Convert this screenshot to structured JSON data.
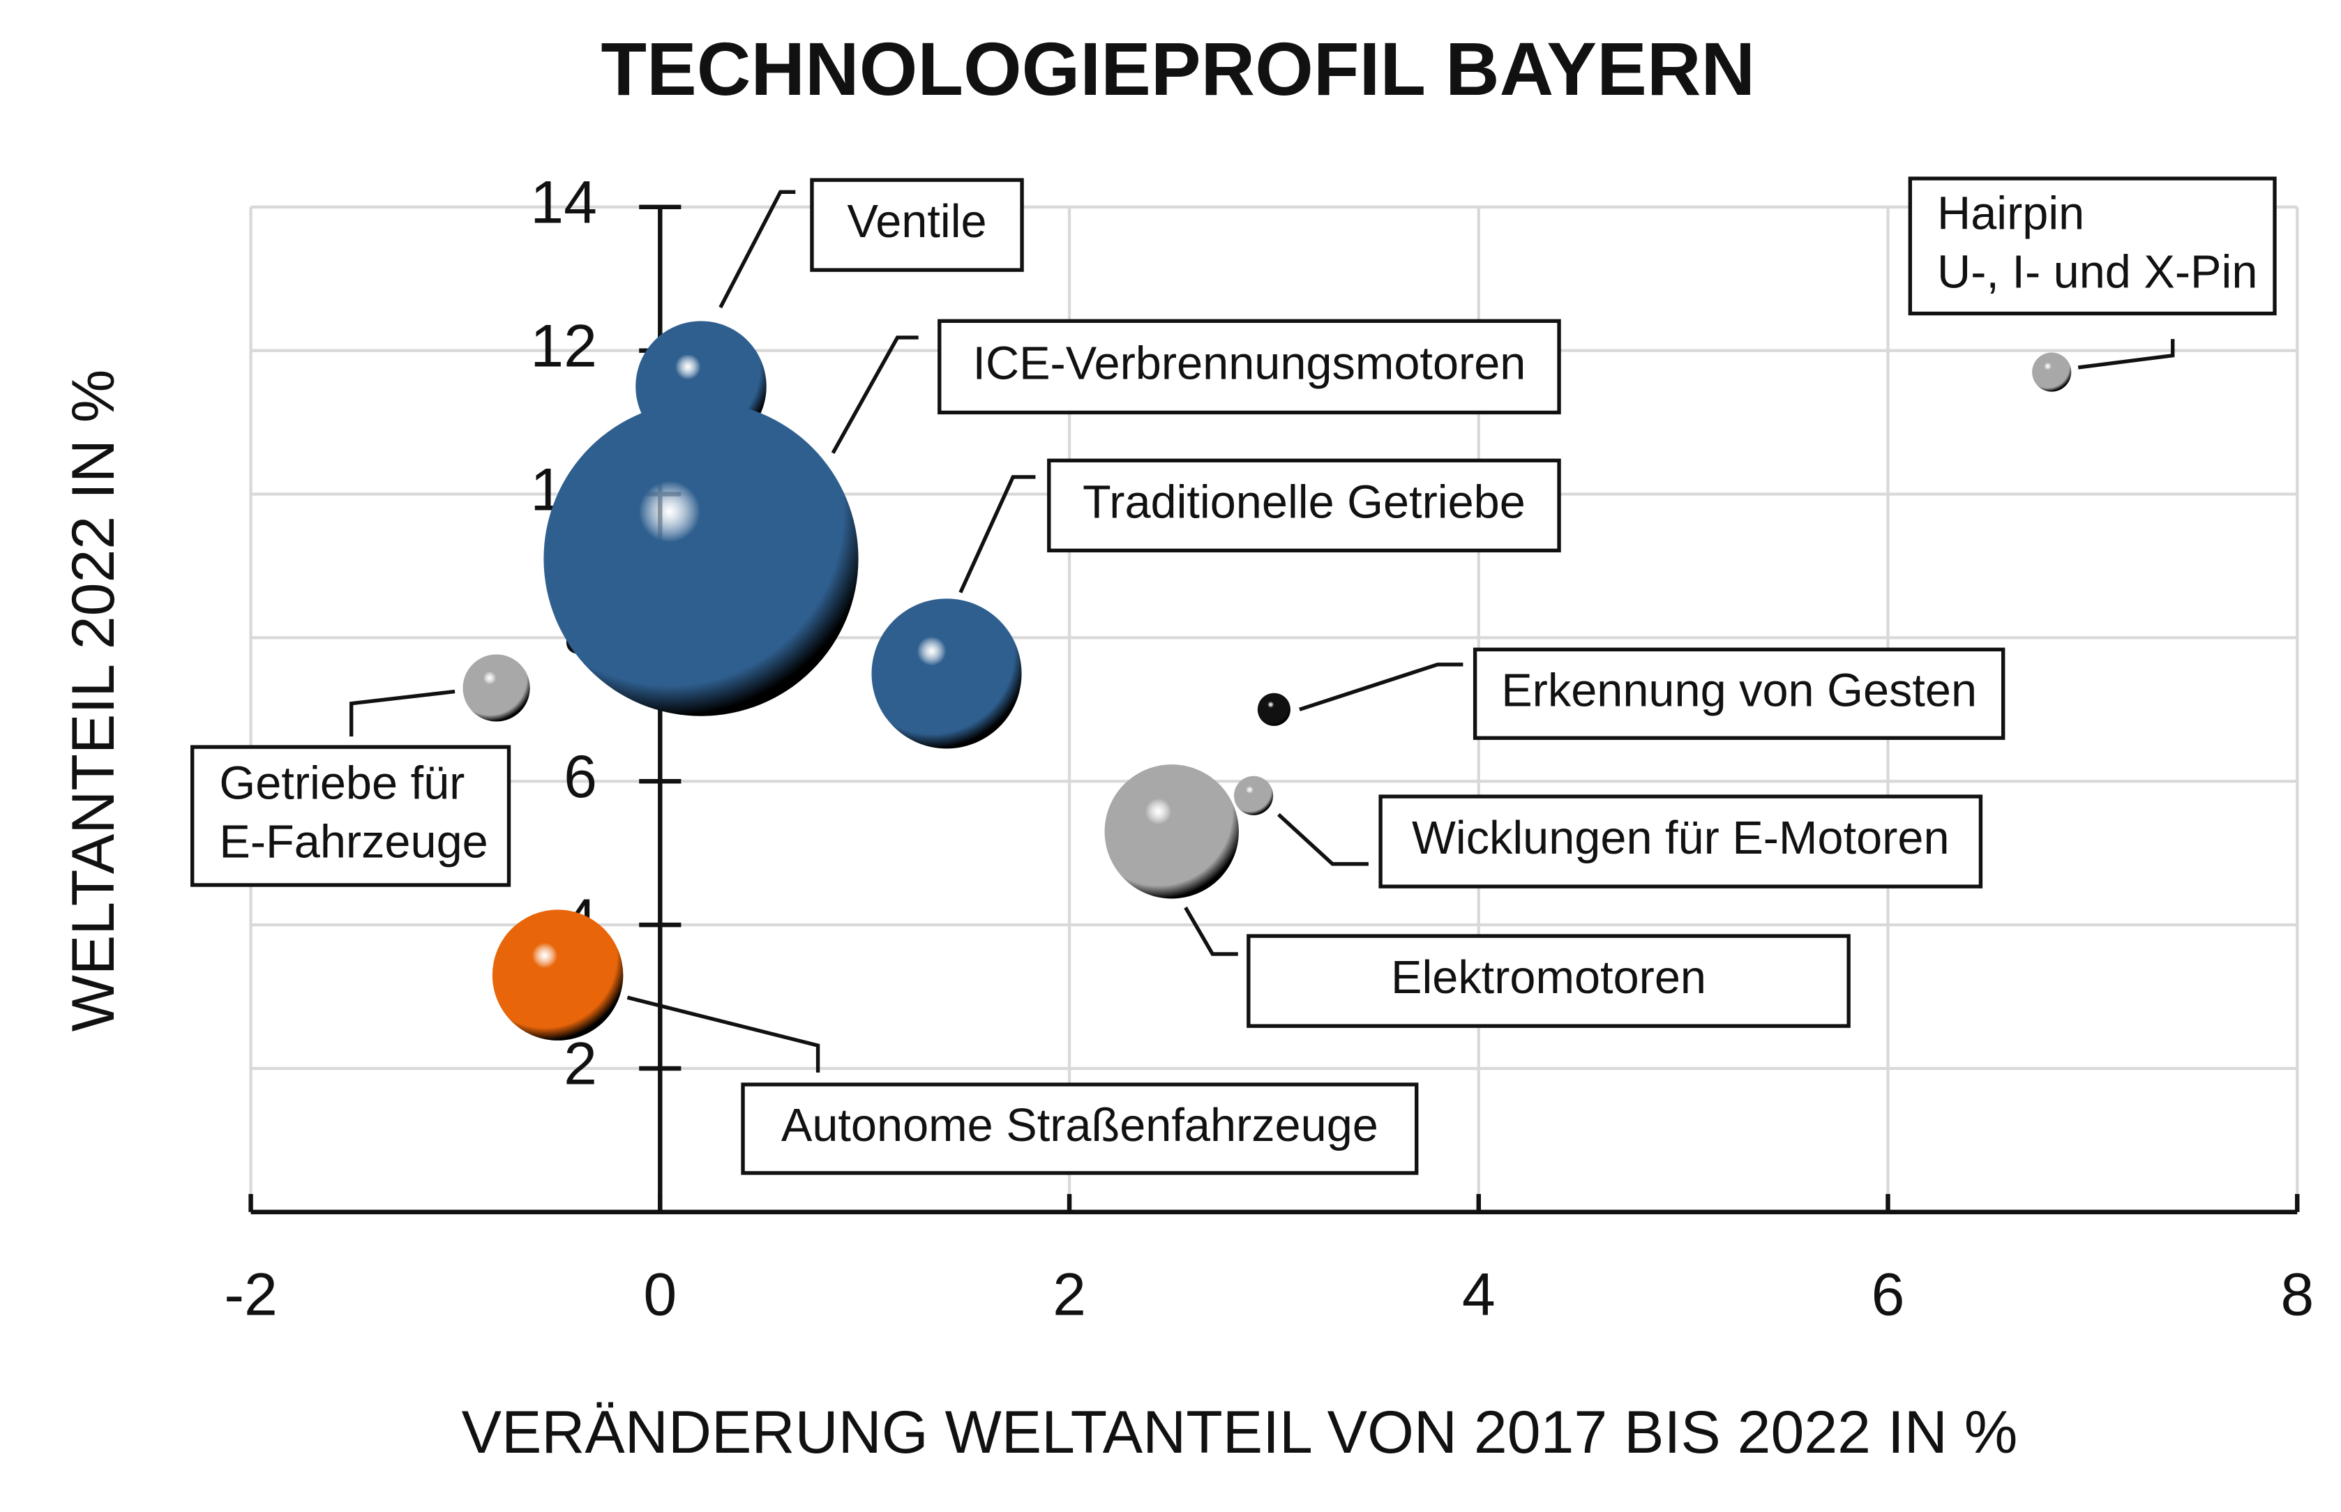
{
  "chart_data": {
    "type": "bubble",
    "title": "TECHNOLOGIEPROFIL BAYERN",
    "x_label": "VERÄNDERUNG WELTANTEIL VON 2017 BIS 2022 IN %",
    "y_label": "WELTANTEIL 2022  IN %",
    "xlim": [
      -2,
      8
    ],
    "xticks": [
      -2,
      0,
      2,
      4,
      6,
      8
    ],
    "ylim": [
      0,
      14
    ],
    "yticks": [
      2,
      4,
      6,
      8,
      10,
      12,
      14
    ],
    "grid": true,
    "points": [
      {
        "name": [
          "Ventile"
        ],
        "x": 0.2,
        "y": 11.5,
        "size": 19,
        "color": "#2f5f8f"
      },
      {
        "name": [
          "ICE-Verbrennungsmotoren"
        ],
        "x": 0.2,
        "y": 9.1,
        "size": 110,
        "color": "#2f5f8f"
      },
      {
        "name": [
          "Traditionelle Getriebe"
        ],
        "x": 1.4,
        "y": 7.5,
        "size": 25,
        "color": "#2f5f8f"
      },
      {
        "name": [
          "Getriebe für",
          "E-Fahrzeuge"
        ],
        "x": -0.8,
        "y": 7.3,
        "size": 5,
        "color": "#a8a8a8"
      },
      {
        "name": [
          "Autonome Straßenfahrzeuge"
        ],
        "x": -0.5,
        "y": 3.3,
        "size": 19,
        "color": "#e8650a"
      },
      {
        "name": [
          "Elektromotoren"
        ],
        "x": 2.5,
        "y": 5.3,
        "size": 20,
        "color": "#a8a8a8"
      },
      {
        "name": [
          "Wicklungen für E-Motoren"
        ],
        "x": 2.9,
        "y": 5.8,
        "size": 1.7,
        "color": "#a8a8a8"
      },
      {
        "name": [
          "Erkennung von Gesten"
        ],
        "x": 3.0,
        "y": 7.0,
        "size": 1.2,
        "color": "#111111"
      },
      {
        "name": [
          "Hairpin",
          "U-, I- und X-Pin"
        ],
        "x": 6.8,
        "y": 11.7,
        "size": 1.7,
        "color": "#a8a8a8"
      }
    ]
  }
}
